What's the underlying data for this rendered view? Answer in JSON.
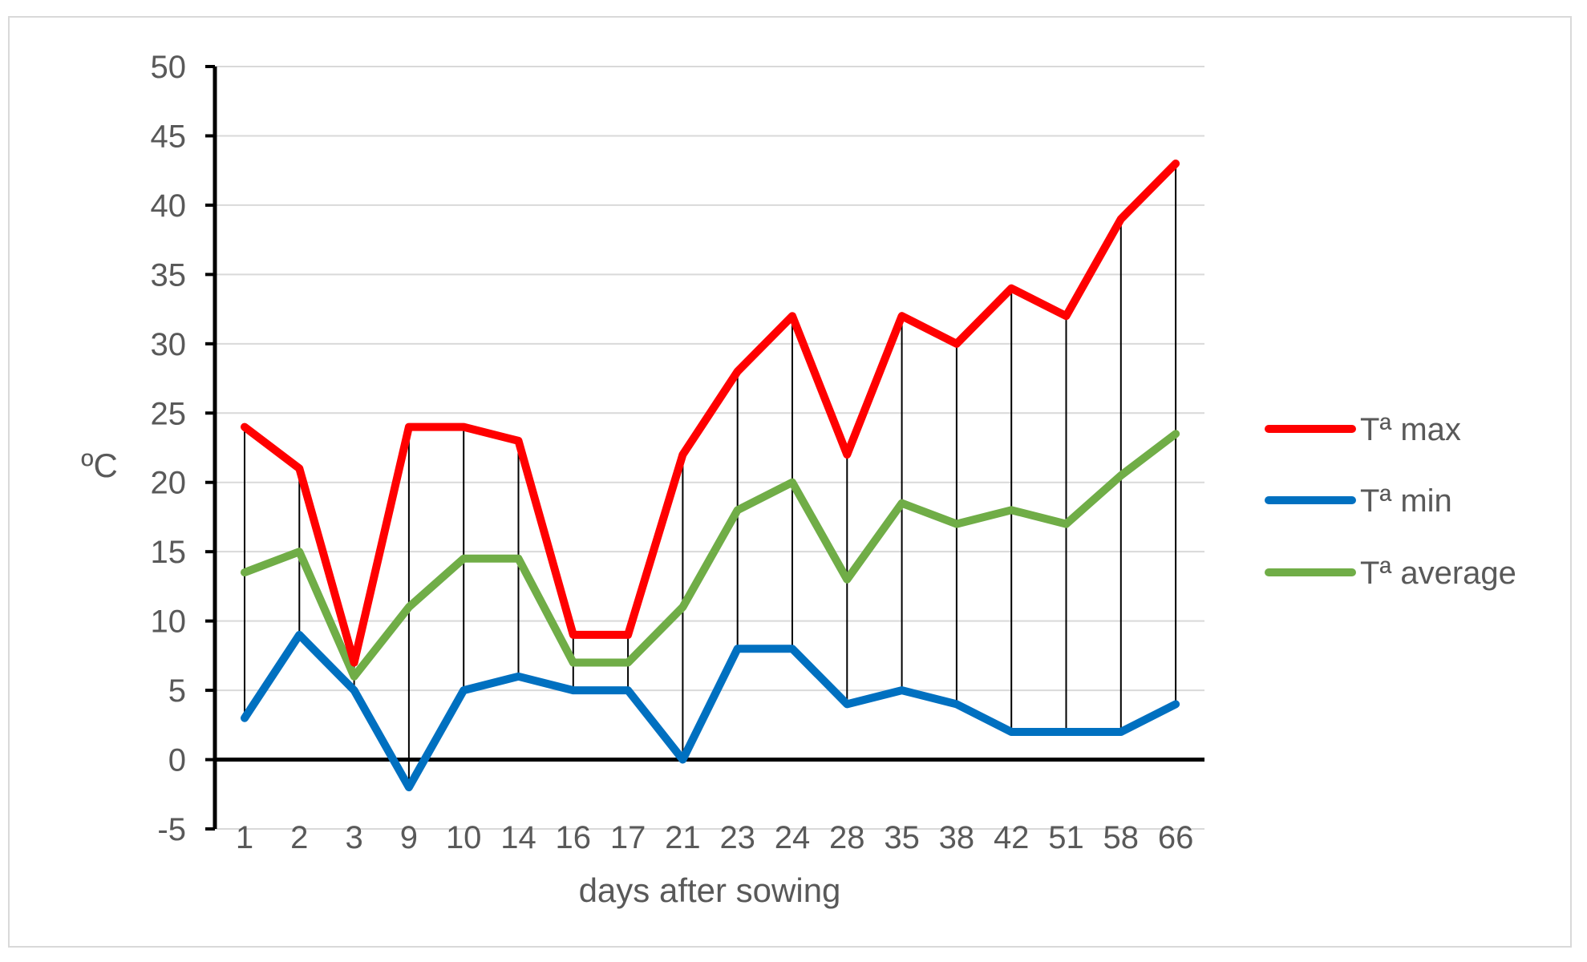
{
  "chart_data": {
    "type": "line",
    "categories": [
      "1",
      "2",
      "3",
      "9",
      "10",
      "14",
      "16",
      "17",
      "21",
      "23",
      "24",
      "28",
      "35",
      "38",
      "42",
      "51",
      "58",
      "66"
    ],
    "series": [
      {
        "name": "Tª max",
        "color": "#ff0000",
        "values": [
          24,
          21,
          7,
          24,
          24,
          23,
          9,
          9,
          22,
          28,
          32,
          22,
          32,
          30,
          34,
          32,
          39,
          43
        ]
      },
      {
        "name": "Tª min",
        "color": "#0070c0",
        "values": [
          3,
          9,
          5,
          -2,
          5,
          6,
          5,
          5,
          0,
          8,
          8,
          4,
          5,
          4,
          2,
          2,
          2,
          4
        ]
      },
      {
        "name": "Tª average",
        "color": "#70ad47",
        "values": [
          13.5,
          15,
          6,
          11,
          14.5,
          14.5,
          7,
          7,
          11,
          18,
          20,
          13,
          18.5,
          17,
          18,
          17,
          20.5,
          23.5
        ]
      }
    ],
    "high_low_lines": true,
    "xlabel": "days after sowing",
    "ylabel": "ºC",
    "ylim": [
      -5,
      50
    ],
    "yticks": [
      "50",
      "45",
      "40",
      "35",
      "30",
      "25",
      "20",
      "15",
      "10",
      "5",
      "0",
      "-5"
    ],
    "grid": true,
    "legend_position": "right"
  }
}
